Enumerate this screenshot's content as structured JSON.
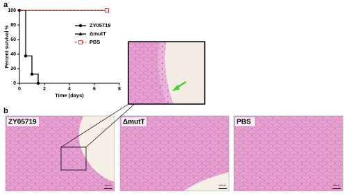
{
  "chart_data": {
    "type": "line",
    "step": true,
    "ylabel": "Percent survival %",
    "xlabel": "Time (days)",
    "xlim": [
      0,
      8
    ],
    "xticks": [
      0,
      2,
      4,
      6,
      8
    ],
    "ylim": [
      0,
      100
    ],
    "yticks": [
      0,
      20,
      40,
      60,
      80,
      100
    ],
    "series": [
      {
        "name": "ZY05719",
        "color": "#000000",
        "marker": "circle",
        "dash": false,
        "x": [
          0,
          0.5,
          1,
          1.5
        ],
        "values": [
          100,
          37.5,
          12.5,
          0
        ]
      },
      {
        "name": "ΔmutT",
        "color": "#000000",
        "marker": "triangle",
        "dash": false,
        "x": [
          0,
          7
        ],
        "values": [
          100,
          100
        ]
      },
      {
        "name": "PBS",
        "color": "#e0302a",
        "marker": "square",
        "dash": true,
        "x": [
          0,
          7
        ],
        "values": [
          100,
          100
        ]
      }
    ]
  },
  "figure": {
    "panel_a": "a",
    "panel_b": "b",
    "images": [
      "ZY05719",
      "ΔmutT",
      "PBS"
    ],
    "scale_bar": "100 μm"
  }
}
